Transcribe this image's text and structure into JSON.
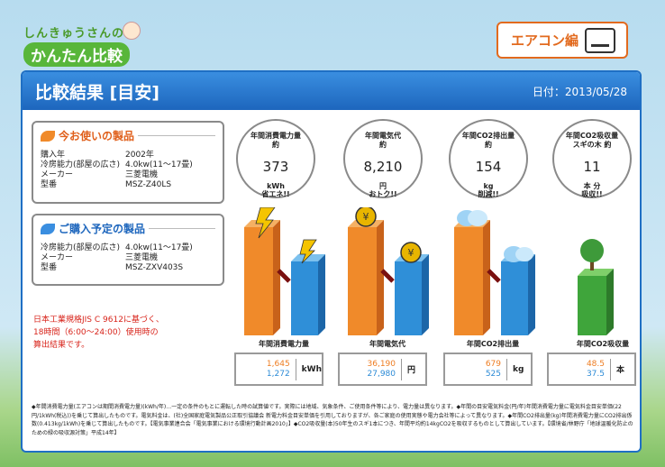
{
  "logo": {
    "top": "しんきゅうさんの",
    "bottom": "かんたん比較"
  },
  "category_button": {
    "label": "エアコン編",
    "icon": "air-conditioner-icon"
  },
  "header": {
    "title": "比較結果 [目安]",
    "date": "日付：2013/05/28"
  },
  "current_product": {
    "title": "今お使いの製品",
    "rows": [
      {
        "k": "購入年",
        "v": "2002年"
      },
      {
        "k": "冷房能力(部屋の広さ)",
        "v": "4.0kw(11〜17畳)"
      },
      {
        "k": "メーカー",
        "v": "三菱電機"
      },
      {
        "k": "型番",
        "v": "MSZ-Z40LS"
      }
    ]
  },
  "future_product": {
    "title": "ご購入予定の製品",
    "rows": [
      {
        "k": "冷房能力(部屋の広さ)",
        "v": "4.0kw(11〜17畳)"
      },
      {
        "k": "メーカー",
        "v": "三菱電機"
      },
      {
        "k": "型番",
        "v": "MSZ-ZXV403S"
      }
    ]
  },
  "note": [
    "日本工業規格JIS C 9612に基づく、",
    "18時間（6:00〜24:00）使用時の",
    "算出結果です。"
  ],
  "circles": [
    {
      "label1": "年間消費電力量",
      "label2": "約",
      "value": "373",
      "unit": "kWh",
      "sub": "省エネ!!"
    },
    {
      "label1": "年間電気代",
      "label2": "約",
      "value": "8,210",
      "unit": "円",
      "sub": "おトク!!"
    },
    {
      "label1": "年間CO2排出量",
      "label2": "約",
      "value": "154",
      "unit": "kg",
      "sub": "削減!!"
    },
    {
      "label1": "年間CO2吸収量",
      "label2": "スギの木 約",
      "value": "11",
      "unit": "本 分",
      "sub": "吸収!!"
    }
  ],
  "charts": [
    {
      "label": "年間消費電力量",
      "old": "1,645",
      "new": "1,272",
      "unit": "kWh",
      "icon": "lightning-icon"
    },
    {
      "label": "年間電気代",
      "old": "36,190",
      "new": "27,980",
      "unit": "円",
      "icon": "yen-coin-icon"
    },
    {
      "label": "年間CO2排出量",
      "old": "679",
      "new": "525",
      "unit": "kg",
      "icon": "cloud-icon"
    },
    {
      "label": "年間CO2吸収量",
      "old": "48.5",
      "new": "37.5",
      "unit": "本",
      "icon": "tree-icon"
    }
  ],
  "footnote": "◆年間消費電力量(エアコンは期間消費電力量)(kWh/年)…一定の条件のもとに運転した時の試算値です。実際には地域、気象条件、ご使用条件等により、電力量は異なります。◆年間の目安電気料金(円/年)年間消費電力量に電気料金目安単価(22円/1kWh(税込))を乗じて算出したものです。電気料金は、(社)全国家庭電気製品公正取引協議会 新電力料金目安単価を引用しておりますが、各ご家庭の使用実態や電力会社等によって異なります。◆年間CO2排出量(kg)年間消費電力量にCO2排出係数(0.413kg/1kWh)を乗じて算出したものです。【電気事業連合会「電気事業における環境行動計画2010」】◆CO2吸収量(本)50年生のスギ1本につき、年間平均約14kgCO2を吸収するものとして算出しています。【環境省/林野庁「地球温暖化防止のための緑の吸収源対策」平成14年】"
}
